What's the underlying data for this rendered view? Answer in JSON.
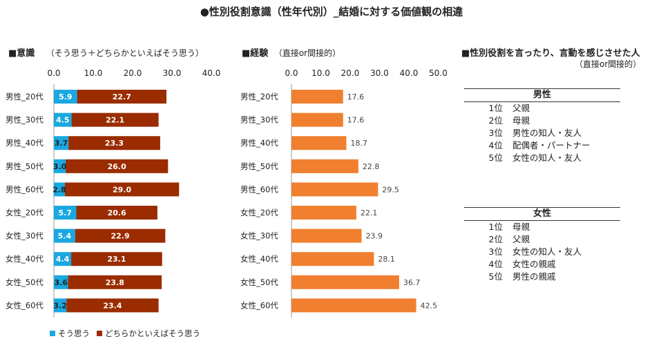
{
  "title": "●性別役割意識（性年代別）_結婚に対する価値観の相違",
  "left_panel": {
    "title": "■意識",
    "subtitle": "（そう思う＋どちらかといえばそう思う）",
    "colors": {
      "series1": "#1aa8e0",
      "series2": "#9a2c00"
    }
  },
  "middle_panel": {
    "title": "■経験",
    "subtitle": "（直接or間接的）",
    "colors": {
      "bar": "#f08030"
    }
  },
  "right_panel": {
    "title": "■性別役割を言ったり、言動を感じさせた人",
    "subtitle": "（直接or間接的）",
    "male": {
      "header": "男性",
      "items": [
        {
          "rank": "1位",
          "name": "父親"
        },
        {
          "rank": "2位",
          "name": "母親"
        },
        {
          "rank": "3位",
          "name": "男性の知人・友人"
        },
        {
          "rank": "4位",
          "name": "配偶者・パートナー"
        },
        {
          "rank": "5位",
          "name": "女性の知人・友人"
        }
      ]
    },
    "female": {
      "header": "女性",
      "items": [
        {
          "rank": "1位",
          "name": "母親"
        },
        {
          "rank": "2位",
          "name": "父親"
        },
        {
          "rank": "3位",
          "name": "女性の知人・友人"
        },
        {
          "rank": "4位",
          "name": "女性の親戚"
        },
        {
          "rank": "5位",
          "name": "男性の親戚"
        }
      ]
    }
  },
  "chart_data": [
    {
      "type": "bar",
      "orientation": "horizontal",
      "stacked": true,
      "title": "■意識",
      "categories": [
        "男性_20代",
        "男性_30代",
        "男性_40代",
        "男性_50代",
        "男性_60代",
        "女性_20代",
        "女性_30代",
        "女性_40代",
        "女性_50代",
        "女性_60代"
      ],
      "series": [
        {
          "name": "そう思う",
          "values": [
            5.9,
            4.5,
            3.7,
            3.0,
            2.8,
            5.7,
            5.4,
            4.4,
            3.6,
            3.2
          ]
        },
        {
          "name": "どちらかといえばそう思う",
          "values": [
            22.7,
            22.1,
            23.3,
            26.0,
            29.0,
            20.6,
            22.9,
            23.1,
            23.8,
            23.4
          ]
        }
      ],
      "xlim": [
        0,
        40
      ],
      "xticks": [
        "0.0",
        "10.0",
        "20.0",
        "30.0",
        "40.0"
      ],
      "legend": "bottom",
      "grid": false
    },
    {
      "type": "bar",
      "orientation": "horizontal",
      "title": "■経験",
      "categories": [
        "男性_20代",
        "男性_30代",
        "男性_40代",
        "男性_50代",
        "男性_60代",
        "女性_20代",
        "女性_30代",
        "女性_40代",
        "女性_50代",
        "女性_60代"
      ],
      "values": [
        17.6,
        17.6,
        18.7,
        22.8,
        29.5,
        22.1,
        23.9,
        28.1,
        36.7,
        42.5
      ],
      "xlim": [
        0,
        50
      ],
      "xticks": [
        "0.0",
        "10.0",
        "20.0",
        "30.0",
        "40.0",
        "50.0"
      ],
      "grid": false
    }
  ]
}
